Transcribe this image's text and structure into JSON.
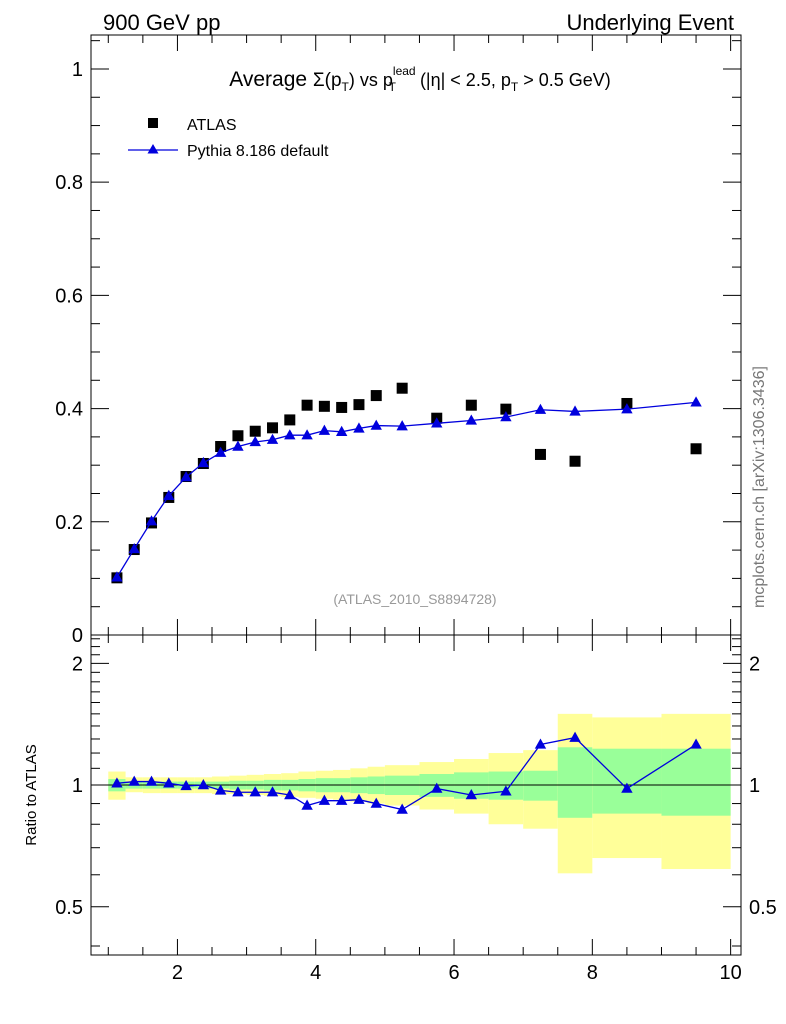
{
  "header": {
    "left": "900 GeV pp",
    "right": "Underlying Event"
  },
  "side_label": "mcplots.cern.ch [arXiv:1306.3436]",
  "colors": {
    "atlas": "#000000",
    "pythia": "#0000dd",
    "band_inner": "#99ff99",
    "band_outer": "#ffff99"
  },
  "chart_data": [
    {
      "type": "scatter",
      "title": {
        "pre": "Average ",
        "sigma": "Σ(p",
        "sub_t": "T",
        "mid": ") vs p",
        "sup": "lead",
        "sub_t2": "T",
        "post": " (|η| < 2.5, p",
        "sub_t3": "T",
        "tail": " > 0.5 GeV)"
      },
      "watermark": "(ATLAS_2010_S8894728)",
      "xlim": [
        0.75,
        10.15
      ],
      "ylim": [
        0,
        1.06
      ],
      "y_ticks": [
        0,
        0.2,
        0.4,
        0.6,
        0.8,
        1
      ],
      "y_tick_labels": [
        "0",
        "0.2",
        "0.4",
        "0.6",
        "0.8",
        "1"
      ],
      "legend": {
        "placement": "top-left",
        "entries": [
          "ATLAS",
          "Pythia 8.186 default"
        ]
      },
      "series": [
        {
          "name": "ATLAS",
          "marker": "square",
          "x": [
            1.125,
            1.375,
            1.625,
            1.875,
            2.125,
            2.375,
            2.625,
            2.875,
            3.125,
            3.375,
            3.625,
            3.875,
            4.125,
            4.375,
            4.625,
            4.875,
            5.25,
            5.75,
            6.25,
            6.75,
            7.25,
            7.75,
            8.5,
            9.5
          ],
          "y": [
            0.101,
            0.151,
            0.198,
            0.243,
            0.28,
            0.303,
            0.333,
            0.352,
            0.36,
            0.366,
            0.38,
            0.406,
            0.404,
            0.402,
            0.407,
            0.423,
            0.436,
            0.383,
            0.406,
            0.399,
            0.319,
            0.307,
            0.409,
            0.329
          ]
        },
        {
          "name": "Pythia 8.186 default",
          "marker": "triangle",
          "x": [
            1.125,
            1.375,
            1.625,
            1.875,
            2.125,
            2.375,
            2.625,
            2.875,
            3.125,
            3.375,
            3.625,
            3.875,
            4.125,
            4.375,
            4.625,
            4.875,
            5.25,
            5.75,
            6.25,
            6.75,
            7.25,
            7.75,
            8.5,
            9.5
          ],
          "y": [
            0.102,
            0.152,
            0.201,
            0.246,
            0.279,
            0.304,
            0.322,
            0.333,
            0.341,
            0.345,
            0.353,
            0.353,
            0.361,
            0.359,
            0.365,
            0.37,
            0.369,
            0.374,
            0.379,
            0.385,
            0.398,
            0.395,
            0.399,
            0.411
          ]
        }
      ]
    },
    {
      "type": "line",
      "ylabel": "Ratio to ATLAS",
      "xlim": [
        0.75,
        10.15
      ],
      "ylim": [
        0.38,
        2.35
      ],
      "x_ticks": [
        2,
        4,
        6,
        8,
        10
      ],
      "x_tick_labels": [
        "2",
        "4",
        "6",
        "8",
        "10"
      ],
      "y_ticks": [
        0.5,
        1,
        2
      ],
      "y_tick_labels": [
        "0.5",
        "1",
        "2"
      ],
      "reference_line": 1,
      "bands": {
        "edges": [
          1.0,
          1.25,
          1.5,
          1.75,
          2.0,
          2.25,
          2.5,
          2.75,
          3.0,
          3.25,
          3.5,
          3.75,
          4.0,
          4.25,
          4.5,
          4.75,
          5.0,
          5.5,
          6.0,
          6.5,
          7.0,
          7.5,
          8.0,
          9.0,
          10.0
        ],
        "inner_lo": [
          0.965,
          0.98,
          0.98,
          0.98,
          0.98,
          0.98,
          0.98,
          0.975,
          0.975,
          0.97,
          0.97,
          0.965,
          0.96,
          0.96,
          0.955,
          0.95,
          0.945,
          0.935,
          0.925,
          0.92,
          0.915,
          0.83,
          0.85,
          0.84
        ],
        "inner_hi": [
          1.035,
          1.02,
          1.02,
          1.02,
          1.02,
          1.02,
          1.02,
          1.025,
          1.025,
          1.03,
          1.03,
          1.035,
          1.04,
          1.04,
          1.045,
          1.05,
          1.055,
          1.065,
          1.075,
          1.08,
          1.085,
          1.24,
          1.23,
          1.23
        ],
        "outer_lo": [
          0.92,
          0.96,
          0.955,
          0.955,
          0.955,
          0.955,
          0.95,
          0.95,
          0.945,
          0.94,
          0.935,
          0.93,
          0.925,
          0.92,
          0.91,
          0.9,
          0.89,
          0.87,
          0.85,
          0.8,
          0.78,
          0.605,
          0.66,
          0.62
        ],
        "outer_hi": [
          1.08,
          1.045,
          1.045,
          1.045,
          1.045,
          1.045,
          1.05,
          1.055,
          1.06,
          1.065,
          1.07,
          1.08,
          1.085,
          1.09,
          1.1,
          1.11,
          1.12,
          1.14,
          1.16,
          1.2,
          1.22,
          1.5,
          1.47,
          1.5
        ]
      },
      "series": [
        {
          "name": "Pythia 8.186 default",
          "marker": "triangle",
          "x": [
            1.125,
            1.375,
            1.625,
            1.875,
            2.125,
            2.375,
            2.625,
            2.875,
            3.125,
            3.375,
            3.625,
            3.875,
            4.125,
            4.375,
            4.625,
            4.875,
            5.25,
            5.75,
            6.25,
            6.75,
            7.25,
            7.75,
            8.5,
            9.5
          ],
          "y": [
            1.01,
            1.02,
            1.02,
            1.01,
            0.995,
            1.0,
            0.97,
            0.96,
            0.96,
            0.96,
            0.945,
            0.89,
            0.915,
            0.915,
            0.92,
            0.9,
            0.87,
            0.98,
            0.945,
            0.965,
            1.26,
            1.31,
            0.98,
            1.26
          ]
        }
      ]
    }
  ]
}
